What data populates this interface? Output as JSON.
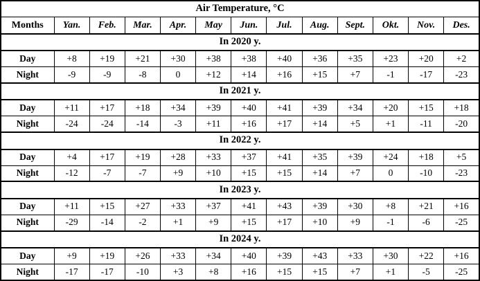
{
  "colors": {
    "background": "#ffffff",
    "border": "#000000",
    "text": "#000000"
  },
  "chart_data": {
    "type": "table",
    "title": "Air Temperature, °C",
    "corner_label": "Months",
    "columns": [
      "Yan.",
      "Feb.",
      "Mar.",
      "Apr.",
      "May",
      "Jun.",
      "Jul.",
      "Aug.",
      "Sept.",
      "Okt.",
      "Nov.",
      "Des."
    ],
    "unit": "°C",
    "sections": [
      {
        "label": "In 2020 y.",
        "rows": [
          {
            "label": "Day",
            "values": [
              "+8",
              "+19",
              "+21",
              "+30",
              "+38",
              "+38",
              "+40",
              "+36",
              "+35",
              "+23",
              "+20",
              "+2"
            ]
          },
          {
            "label": "Night",
            "values": [
              "-9",
              "-9",
              "-8",
              "0",
              "+12",
              "+14",
              "+16",
              "+15",
              "+7",
              "-1",
              "-17",
              "-23"
            ]
          }
        ]
      },
      {
        "label": "In 2021 y.",
        "rows": [
          {
            "label": "Day",
            "values": [
              "+11",
              "+17",
              "+18",
              "+34",
              "+39",
              "+40",
              "+41",
              "+39",
              "+34",
              "+20",
              "+15",
              "+18"
            ]
          },
          {
            "label": "Night",
            "values": [
              "-24",
              "-24",
              "-14",
              "-3",
              "+11",
              "+16",
              "+17",
              "+14",
              "+5",
              "+1",
              "-11",
              "-20"
            ]
          }
        ]
      },
      {
        "label": "In 2022 y.",
        "rows": [
          {
            "label": "Day",
            "values": [
              "+4",
              "+17",
              "+19",
              "+28",
              "+33",
              "+37",
              "+41",
              "+35",
              "+39",
              "+24",
              "+18",
              "+5"
            ]
          },
          {
            "label": "Night",
            "values": [
              "-12",
              "-7",
              "-7",
              "+9",
              "+10",
              "+15",
              "+15",
              "+14",
              "+7",
              "0",
              "-10",
              "-23"
            ]
          }
        ]
      },
      {
        "label": "In 2023 y.",
        "rows": [
          {
            "label": "Day",
            "values": [
              "+11",
              "+15",
              "+27",
              "+33",
              "+37",
              "+41",
              "+43",
              "+39",
              "+30",
              "+8",
              "+21",
              "+16"
            ]
          },
          {
            "label": "Night",
            "values": [
              "-29",
              "-14",
              "-2",
              "+1",
              "+9",
              "+15",
              "+17",
              "+10",
              "+9",
              "-1",
              "-6",
              "-25"
            ]
          }
        ]
      },
      {
        "label": "In 2024 y.",
        "rows": [
          {
            "label": "Day",
            "values": [
              "+9",
              "+19",
              "+26",
              "+33",
              "+34",
              "+40",
              "+39",
              "+43",
              "+33",
              "+30",
              "+22",
              "+16"
            ]
          },
          {
            "label": "Night",
            "values": [
              "-17",
              "-17",
              "-10",
              "+3",
              "+8",
              "+16",
              "+15",
              "+15",
              "+7",
              "+1",
              "-5",
              "-25"
            ]
          }
        ]
      }
    ]
  }
}
